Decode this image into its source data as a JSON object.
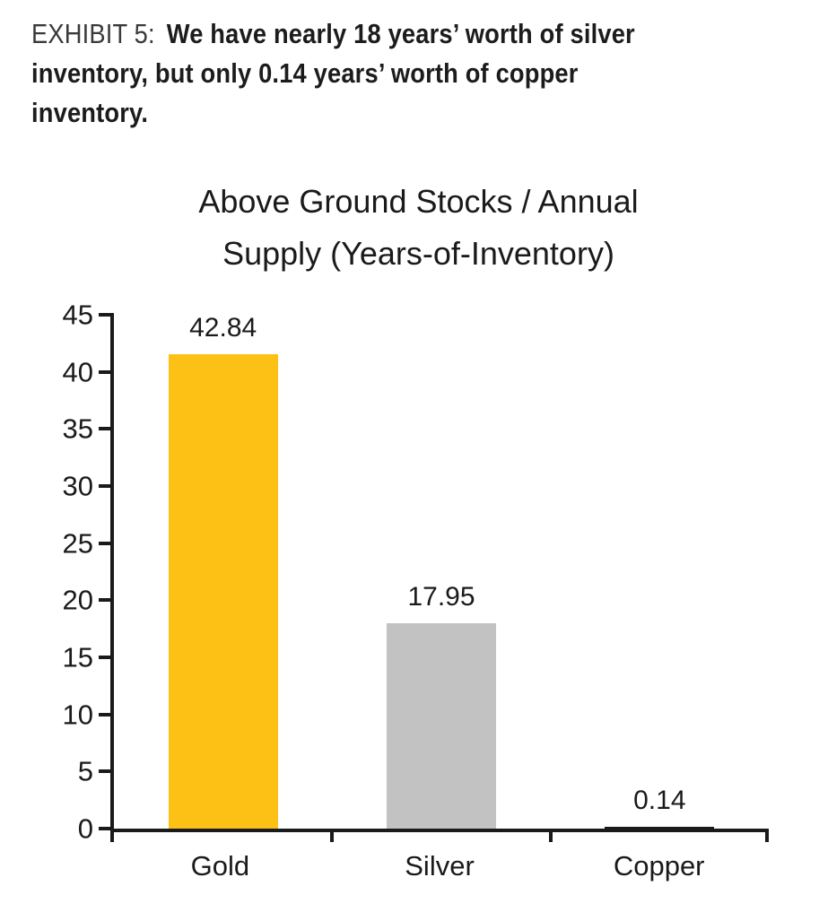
{
  "exhibit": {
    "label": "EXHIBIT 5:",
    "title": "We have nearly 18 years’ worth of silver inventory, but only 0.14 years’ worth of copper inventory.",
    "title_lines": [
      "We have nearly 18 years’ worth of silver",
      "inventory, but only 0.14 years’ worth of copper",
      "inventory."
    ]
  },
  "chart_data": {
    "type": "bar",
    "title": "Above Ground Stocks / Annual Supply (Years-of-Inventory)",
    "title_lines": [
      "Above Ground Stocks / Annual",
      "Supply (Years-of-Inventory)"
    ],
    "categories": [
      "Gold",
      "Silver",
      "Copper"
    ],
    "values": [
      42.84,
      17.95,
      0.14
    ],
    "bar_colors": [
      "#FCC114",
      "#C2C2C2",
      "#1A1A1A"
    ],
    "xlabel": "",
    "ylabel": "",
    "ylim": [
      0,
      45
    ],
    "yticks": [
      0,
      5,
      10,
      15,
      20,
      25,
      30,
      35,
      40,
      45
    ],
    "grid": false,
    "legend": null,
    "data_labels": true
  },
  "colors": {
    "background": "#FFFFFF",
    "axis": "#1A1A1A",
    "text": "#1A1A1A",
    "exhibit_label_text": "#3A3A3A"
  }
}
